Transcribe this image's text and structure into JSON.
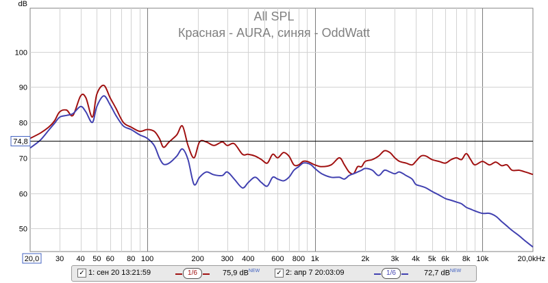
{
  "chart_data": {
    "type": "line",
    "title": "All SPL",
    "subtitle": "Красная - AURA, синяя - OddWatt",
    "ylabel": "dB",
    "xlabel": "",
    "x_scale": "log",
    "xlim": [
      20,
      20000
    ],
    "ylim": [
      43.5,
      112.3
    ],
    "y_ticks": [
      50,
      60,
      70,
      80,
      90,
      100
    ],
    "y_tick_labels": [
      "50",
      "60",
      "70",
      "80",
      "90",
      "100"
    ],
    "x_ticks": [
      20,
      30,
      40,
      50,
      60,
      80,
      100,
      200,
      300,
      400,
      600,
      800,
      1000,
      2000,
      3000,
      4000,
      5000,
      6000,
      8000,
      10000,
      20000
    ],
    "x_tick_labels": [
      "20,0",
      "30",
      "40",
      "50",
      "60",
      "80",
      "100",
      "200",
      "300",
      "400",
      "600",
      "800",
      "1k",
      "2k",
      "3k",
      "4k",
      "5k",
      "6k",
      "8k",
      "10k",
      "20,0kHz"
    ],
    "reference_line": {
      "value": 74.8,
      "label": "74,8"
    },
    "grid": true,
    "series": [
      {
        "name": "1: сен 20 13:21:59",
        "color": "#a01010",
        "x": [
          20,
          23,
          26,
          28,
          30,
          33,
          36,
          40,
          43,
          47,
          50,
          55,
          60,
          65,
          72,
          80,
          90,
          100,
          110,
          118,
          125,
          135,
          150,
          162,
          175,
          190,
          205,
          225,
          250,
          280,
          300,
          330,
          370,
          400,
          440,
          480,
          520,
          560,
          600,
          650,
          700,
          750,
          800,
          850,
          900,
          950,
          1000,
          1100,
          1250,
          1400,
          1500,
          1600,
          1700,
          1800,
          1900,
          2000,
          2200,
          2400,
          2600,
          2800,
          3000,
          3200,
          3500,
          3800,
          4000,
          4300,
          4600,
          5000,
          5500,
          6000,
          6500,
          7000,
          7500,
          8000,
          8500,
          9000,
          10000,
          11000,
          12000,
          13000,
          14000,
          15000,
          16500,
          18000,
          20000
        ],
        "values": [
          75.5,
          77,
          78.8,
          80.5,
          83,
          83.5,
          82,
          87.5,
          87,
          81.5,
          88,
          90.5,
          87,
          84,
          80,
          78.7,
          77.5,
          78,
          77.5,
          75.5,
          73,
          74.5,
          76.5,
          79,
          73.5,
          70,
          74.5,
          74.5,
          73.5,
          74.5,
          73.5,
          74,
          71,
          71,
          70.5,
          69.5,
          68.5,
          71,
          70,
          71.5,
          70.5,
          68,
          68,
          69,
          69,
          68.5,
          68,
          67.5,
          68,
          70,
          68,
          66,
          65.5,
          67.5,
          67.5,
          69,
          69.5,
          70.5,
          72,
          71.5,
          70,
          69,
          68.5,
          68,
          69,
          70.5,
          70.5,
          69.5,
          69,
          68.5,
          69.5,
          70,
          69.5,
          71.2,
          69.5,
          68,
          69,
          68,
          68.8,
          67.8,
          68,
          66.5,
          66.5,
          66,
          65.3
        ]
      },
      {
        "name": "2: апр 7 20:03:09",
        "color": "#4040b0",
        "x": [
          20,
          23,
          26,
          28,
          30,
          33,
          36,
          40,
          43,
          47,
          50,
          55,
          60,
          65,
          72,
          80,
          90,
          100,
          110,
          118,
          125,
          135,
          150,
          162,
          175,
          190,
          205,
          225,
          250,
          280,
          300,
          330,
          370,
          400,
          440,
          480,
          520,
          560,
          600,
          650,
          700,
          750,
          800,
          850,
          900,
          950,
          1000,
          1100,
          1250,
          1400,
          1500,
          1600,
          1700,
          1800,
          1900,
          2000,
          2200,
          2400,
          2600,
          2800,
          3000,
          3200,
          3500,
          3800,
          4000,
          4300,
          4600,
          5000,
          5500,
          6000,
          6500,
          7000,
          7500,
          8000,
          8500,
          9000,
          10000,
          11000,
          12000,
          13000,
          14000,
          15000,
          16500,
          18000,
          20000
        ],
        "values": [
          72.8,
          75,
          78,
          79.8,
          81.5,
          82,
          82.5,
          84.5,
          83,
          80,
          84.5,
          87.5,
          85,
          82,
          79,
          78,
          76.5,
          75.5,
          73.5,
          70,
          68.2,
          68.5,
          70.5,
          72.5,
          69.5,
          62.5,
          64.5,
          66,
          65.2,
          65,
          66,
          64,
          61.5,
          63,
          64.5,
          63,
          62,
          64.5,
          64,
          63.5,
          64.5,
          66.5,
          67.5,
          68.5,
          68.5,
          68,
          67,
          65.5,
          64.5,
          64.5,
          64,
          65,
          65.5,
          66,
          66.5,
          67,
          66.5,
          65,
          66.5,
          66,
          65.5,
          66,
          65,
          64,
          62.5,
          62,
          61.5,
          60.5,
          59.5,
          58.5,
          58,
          57.5,
          57,
          56,
          55.5,
          55,
          54.3,
          54.3,
          53.5,
          52,
          50.7,
          49.5,
          48,
          46.5,
          44.8
        ]
      }
    ]
  },
  "legend": {
    "items": [
      {
        "checked": "✓",
        "label": "1: сен 20 13:21:59",
        "smoothing": "1/6",
        "level": "75,9 dB",
        "tag": "NEW",
        "color": "#a01010"
      },
      {
        "checked": "✓",
        "label": "2: апр 7 20:03:09",
        "smoothing": "1/6",
        "level": "72,7 dB",
        "tag": "NEW",
        "color": "#4040b0"
      }
    ]
  }
}
